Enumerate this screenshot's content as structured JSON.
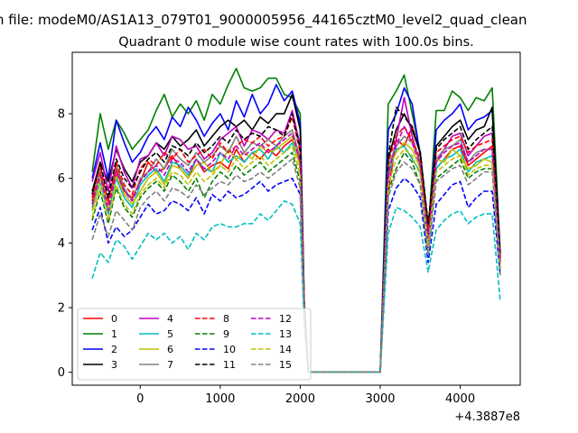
{
  "chart_data": {
    "type": "line",
    "suptitle": "n file: modeM0/AS1A13_079T01_9000005956_44165cztM0_level2_quad_clean",
    "title": "Quadrant 0 module wise count rates with 100.0s bins.",
    "xlabel": "",
    "ylabel": "",
    "offset_text": "+4.3887e8",
    "xlim": [
      -850,
      4750
    ],
    "ylim": [
      -0.4,
      9.9
    ],
    "x_ticks": [
      0,
      1000,
      2000,
      3000,
      4000
    ],
    "x_tick_labels": [
      "0",
      "1000",
      "2000",
      "3000",
      "4000"
    ],
    "y_ticks": [
      0,
      2,
      4,
      6,
      8
    ],
    "y_tick_labels": [
      "0",
      "2",
      "4",
      "6",
      "8"
    ],
    "grid": false,
    "legend_position": "lower left",
    "x": [
      -600,
      -500,
      -400,
      -300,
      -200,
      -100,
      0,
      100,
      200,
      300,
      400,
      500,
      600,
      700,
      800,
      900,
      1000,
      1100,
      1200,
      1300,
      1400,
      1500,
      1600,
      1700,
      1800,
      1900,
      2000,
      2050,
      2100,
      2200,
      2300,
      2400,
      2500,
      2600,
      2700,
      2800,
      2900,
      3000,
      3100,
      3200,
      3300,
      3400,
      3500,
      3600,
      3700,
      3800,
      3900,
      4000,
      4100,
      4200,
      4300,
      4400,
      4500
    ],
    "series": [
      {
        "name": "0",
        "color": "#ff0000",
        "dash": "solid",
        "values": [
          5.3,
          6.2,
          4.9,
          6.3,
          5.6,
          5.4,
          5.9,
          6.5,
          6.2,
          6.3,
          6.7,
          6.3,
          6.0,
          6.6,
          6.2,
          6.4,
          6.5,
          6.3,
          6.9,
          6.5,
          6.8,
          6.6,
          6.9,
          6.7,
          7.0,
          7.2,
          6.5,
          2.0,
          0.0,
          0.0,
          0.0,
          0.0,
          0.0,
          0.0,
          0.0,
          0.0,
          0.0,
          0.0,
          5.6,
          7.2,
          7.0,
          7.6,
          6.8,
          4.3,
          6.3,
          6.6,
          6.9,
          7.0,
          6.4,
          6.6,
          6.8,
          7.0,
          3.6
        ]
      },
      {
        "name": "1",
        "color": "#008000",
        "dash": "solid",
        "values": [
          6.2,
          8.0,
          6.9,
          7.8,
          7.4,
          6.9,
          7.2,
          7.5,
          8.1,
          8.6,
          7.9,
          8.3,
          8.0,
          8.4,
          7.8,
          8.6,
          8.3,
          8.9,
          9.4,
          8.8,
          8.7,
          8.8,
          9.1,
          9.1,
          8.6,
          8.5,
          8.0,
          2.2,
          0.0,
          0.0,
          0.0,
          0.0,
          0.0,
          0.0,
          0.0,
          0.0,
          0.0,
          0.0,
          8.3,
          8.7,
          9.2,
          8.0,
          6.8,
          4.3,
          8.1,
          8.1,
          8.7,
          8.5,
          8.1,
          8.5,
          8.4,
          8.8,
          3.7
        ]
      },
      {
        "name": "2",
        "color": "#0000ff",
        "dash": "solid",
        "values": [
          6.0,
          7.1,
          6.0,
          7.8,
          7.1,
          6.5,
          6.8,
          7.3,
          7.6,
          7.2,
          7.9,
          7.6,
          8.2,
          7.8,
          7.3,
          7.7,
          8.0,
          7.5,
          8.4,
          7.9,
          8.6,
          8.0,
          8.3,
          8.9,
          8.4,
          8.7,
          7.7,
          2.1,
          0.0,
          0.0,
          0.0,
          0.0,
          0.0,
          0.0,
          0.0,
          0.0,
          0.0,
          0.0,
          7.5,
          8.0,
          8.8,
          8.3,
          6.7,
          4.2,
          7.5,
          7.8,
          8.0,
          8.3,
          7.5,
          7.8,
          7.9,
          8.1,
          3.6
        ]
      },
      {
        "name": "3",
        "color": "#000000",
        "dash": "solid",
        "values": [
          5.6,
          6.5,
          5.9,
          6.9,
          6.3,
          5.9,
          6.5,
          6.7,
          7.1,
          6.9,
          7.3,
          7.0,
          7.2,
          7.5,
          7.0,
          7.3,
          7.6,
          7.8,
          7.6,
          7.8,
          7.5,
          7.9,
          7.7,
          8.0,
          8.0,
          8.6,
          7.5,
          2.0,
          0.0,
          0.0,
          0.0,
          0.0,
          0.0,
          0.0,
          0.0,
          0.0,
          0.0,
          0.0,
          6.6,
          7.5,
          8.0,
          7.5,
          6.8,
          4.5,
          7.0,
          7.3,
          7.6,
          7.8,
          7.2,
          7.5,
          7.6,
          8.2,
          3.5
        ]
      },
      {
        "name": "4",
        "color": "#bf00bf",
        "dash": "solid",
        "values": [
          5.9,
          6.8,
          5.6,
          7.0,
          6.2,
          5.7,
          6.6,
          6.7,
          7.1,
          6.7,
          7.3,
          7.2,
          6.9,
          7.0,
          6.6,
          6.8,
          7.2,
          7.4,
          7.6,
          7.0,
          7.5,
          7.4,
          7.2,
          7.5,
          7.4,
          8.1,
          7.0,
          2.0,
          0.0,
          0.0,
          0.0,
          0.0,
          0.0,
          0.0,
          0.0,
          0.0,
          0.0,
          0.0,
          6.0,
          7.2,
          8.5,
          7.3,
          6.4,
          4.0,
          6.5,
          6.9,
          7.3,
          7.4,
          6.7,
          7.0,
          7.3,
          7.4,
          3.4
        ]
      },
      {
        "name": "5",
        "color": "#00bfbf",
        "dash": "solid",
        "values": [
          5.0,
          5.9,
          4.9,
          6.0,
          5.4,
          5.1,
          5.8,
          6.1,
          6.3,
          5.9,
          6.5,
          6.4,
          6.1,
          6.6,
          6.3,
          6.2,
          6.8,
          6.5,
          6.7,
          6.5,
          6.8,
          6.9,
          6.6,
          7.0,
          6.8,
          7.1,
          6.4,
          1.9,
          0.0,
          0.0,
          0.0,
          0.0,
          0.0,
          0.0,
          0.0,
          0.0,
          0.0,
          0.0,
          6.1,
          6.9,
          7.0,
          6.6,
          6.2,
          3.7,
          6.3,
          6.6,
          6.7,
          6.9,
          6.2,
          6.5,
          6.6,
          6.7,
          3.2
        ]
      },
      {
        "name": "6",
        "color": "#bfbf00",
        "dash": "solid",
        "values": [
          5.0,
          6.0,
          5.0,
          6.1,
          5.5,
          5.2,
          5.6,
          6.0,
          6.2,
          5.8,
          6.4,
          6.3,
          6.0,
          6.4,
          6.5,
          6.2,
          6.4,
          6.9,
          6.6,
          6.8,
          6.6,
          7.0,
          6.8,
          6.9,
          7.1,
          7.3,
          6.3,
          1.9,
          0.0,
          0.0,
          0.0,
          0.0,
          0.0,
          0.0,
          0.0,
          0.0,
          0.0,
          0.0,
          6.3,
          6.8,
          7.1,
          6.9,
          6.3,
          3.8,
          6.6,
          6.5,
          6.9,
          6.7,
          6.3,
          6.4,
          6.6,
          6.5,
          3.3
        ]
      },
      {
        "name": "7",
        "color": "#808080",
        "dash": "solid",
        "values": [
          5.1,
          6.3,
          5.3,
          6.4,
          5.7,
          5.3,
          6.0,
          6.2,
          6.6,
          6.3,
          6.9,
          6.6,
          6.4,
          6.8,
          6.5,
          6.7,
          7.0,
          6.8,
          7.3,
          6.8,
          7.1,
          7.0,
          7.2,
          7.0,
          7.3,
          7.5,
          6.6,
          1.9,
          0.0,
          0.0,
          0.0,
          0.0,
          0.0,
          0.0,
          0.0,
          0.0,
          0.0,
          0.0,
          6.4,
          7.0,
          7.3,
          7.1,
          6.5,
          3.9,
          6.6,
          6.9,
          7.0,
          7.2,
          6.5,
          6.8,
          6.9,
          6.9,
          3.4
        ]
      },
      {
        "name": "8",
        "color": "#ff0000",
        "dash": "dashed",
        "values": [
          5.4,
          6.4,
          5.2,
          6.5,
          5.8,
          5.5,
          6.3,
          6.6,
          6.4,
          6.8,
          6.6,
          6.9,
          6.5,
          6.7,
          6.9,
          6.6,
          7.1,
          6.8,
          7.0,
          7.2,
          7.1,
          7.3,
          7.0,
          7.2,
          7.3,
          7.9,
          6.8,
          2.0,
          0.0,
          0.0,
          0.0,
          0.0,
          0.0,
          0.0,
          0.0,
          0.0,
          0.0,
          0.0,
          6.5,
          7.3,
          7.6,
          7.2,
          6.6,
          4.4,
          6.8,
          7.0,
          7.2,
          7.3,
          6.8,
          7.0,
          7.1,
          7.2,
          3.5
        ]
      },
      {
        "name": "9",
        "color": "#008000",
        "dash": "dashed",
        "values": [
          4.7,
          5.6,
          4.6,
          5.7,
          5.1,
          4.8,
          5.4,
          5.7,
          5.9,
          5.6,
          6.1,
          5.9,
          5.6,
          6.0,
          5.4,
          5.9,
          6.2,
          6.0,
          6.4,
          6.1,
          6.3,
          6.5,
          6.2,
          6.4,
          6.6,
          6.8,
          5.9,
          1.8,
          0.0,
          0.0,
          0.0,
          0.0,
          0.0,
          0.0,
          0.0,
          0.0,
          0.0,
          0.0,
          5.6,
          6.3,
          6.8,
          6.5,
          5.8,
          3.7,
          6.0,
          6.2,
          6.4,
          6.6,
          6.0,
          6.2,
          6.3,
          6.3,
          3.1
        ]
      },
      {
        "name": "10",
        "color": "#0000ff",
        "dash": "dashed",
        "values": [
          4.4,
          5.1,
          4.0,
          4.5,
          4.2,
          4.4,
          4.8,
          5.2,
          4.9,
          5.0,
          5.3,
          5.2,
          5.0,
          5.4,
          4.9,
          5.5,
          5.3,
          5.6,
          5.4,
          5.5,
          5.7,
          5.9,
          5.6,
          5.8,
          5.9,
          6.0,
          5.5,
          1.7,
          0.0,
          0.0,
          0.0,
          0.0,
          0.0,
          0.0,
          0.0,
          0.0,
          0.0,
          0.0,
          5.0,
          5.7,
          6.0,
          5.8,
          5.4,
          3.4,
          5.2,
          5.5,
          5.8,
          5.9,
          5.1,
          5.4,
          5.6,
          5.6,
          3.0
        ]
      },
      {
        "name": "11",
        "color": "#000000",
        "dash": "dashed",
        "values": [
          5.5,
          6.5,
          5.4,
          6.6,
          6.0,
          5.7,
          6.2,
          6.6,
          6.8,
          6.5,
          7.0,
          6.9,
          6.7,
          7.1,
          6.8,
          7.0,
          7.3,
          7.1,
          7.5,
          7.2,
          7.4,
          7.3,
          7.6,
          7.5,
          7.3,
          8.0,
          6.9,
          2.0,
          0.0,
          0.0,
          0.0,
          0.0,
          0.0,
          0.0,
          0.0,
          0.0,
          0.0,
          0.0,
          6.7,
          8.2,
          7.9,
          7.6,
          6.8,
          4.6,
          6.9,
          7.2,
          7.4,
          7.6,
          6.9,
          7.2,
          7.4,
          7.6,
          3.6
        ]
      },
      {
        "name": "12",
        "color": "#bf00bf",
        "dash": "dashed",
        "values": [
          5.2,
          6.1,
          5.0,
          6.2,
          5.6,
          5.3,
          5.9,
          6.2,
          6.4,
          6.1,
          6.6,
          6.5,
          6.2,
          6.6,
          6.3,
          6.5,
          6.8,
          6.6,
          7.0,
          6.7,
          6.9,
          7.1,
          6.8,
          7.0,
          7.2,
          7.4,
          6.5,
          1.9,
          0.0,
          0.0,
          0.0,
          0.0,
          0.0,
          0.0,
          0.0,
          0.0,
          0.0,
          0.0,
          6.2,
          7.0,
          7.6,
          7.1,
          6.4,
          4.1,
          6.5,
          6.8,
          7.0,
          7.1,
          6.5,
          6.7,
          6.9,
          6.9,
          3.4
        ]
      },
      {
        "name": "13",
        "color": "#00bfbf",
        "dash": "dashed",
        "values": [
          2.9,
          3.7,
          3.4,
          4.1,
          3.9,
          3.5,
          3.9,
          4.3,
          4.1,
          4.3,
          4.0,
          4.2,
          3.8,
          4.3,
          4.1,
          4.5,
          4.6,
          4.5,
          4.5,
          4.6,
          4.6,
          4.9,
          4.7,
          5.0,
          5.3,
          5.2,
          4.6,
          1.5,
          0.0,
          0.0,
          0.0,
          0.0,
          0.0,
          0.0,
          0.0,
          0.0,
          0.0,
          0.0,
          4.3,
          5.1,
          5.0,
          4.8,
          4.5,
          3.1,
          4.4,
          4.7,
          4.9,
          5.0,
          4.6,
          4.8,
          4.9,
          4.9,
          2.2
        ]
      },
      {
        "name": "14",
        "color": "#bfbf00",
        "dash": "dashed",
        "values": [
          4.8,
          5.7,
          4.7,
          5.8,
          5.2,
          4.9,
          5.5,
          5.8,
          6.0,
          5.7,
          6.2,
          6.1,
          5.8,
          6.2,
          5.9,
          6.1,
          6.4,
          6.2,
          6.6,
          6.3,
          6.5,
          6.7,
          6.4,
          6.6,
          6.8,
          7.0,
          6.1,
          1.8,
          0.0,
          0.0,
          0.0,
          0.0,
          0.0,
          0.0,
          0.0,
          0.0,
          0.0,
          0.0,
          5.8,
          6.6,
          6.9,
          6.7,
          6.1,
          3.9,
          6.2,
          6.4,
          6.6,
          6.7,
          6.1,
          6.3,
          6.4,
          6.4,
          3.2
        ]
      },
      {
        "name": "15",
        "color": "#808080",
        "dash": "dashed",
        "values": [
          4.1,
          4.9,
          4.2,
          5.0,
          4.7,
          4.4,
          5.1,
          5.4,
          5.6,
          5.3,
          5.7,
          5.6,
          5.4,
          5.8,
          5.5,
          5.7,
          5.9,
          5.8,
          6.1,
          5.9,
          6.0,
          6.2,
          6.0,
          6.2,
          6.4,
          6.6,
          5.7,
          1.7,
          0.0,
          0.0,
          0.0,
          0.0,
          0.0,
          0.0,
          0.0,
          0.0,
          0.0,
          0.0,
          5.4,
          6.2,
          6.5,
          6.3,
          5.8,
          3.6,
          5.9,
          6.1,
          6.3,
          6.4,
          5.8,
          6.0,
          6.2,
          6.2,
          3.0
        ]
      }
    ]
  }
}
